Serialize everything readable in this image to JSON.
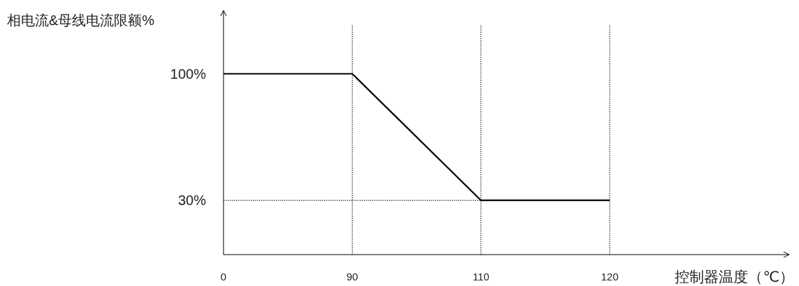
{
  "chart_data": {
    "type": "line",
    "categories": [
      "0",
      "90",
      "110",
      "120"
    ],
    "series": [
      {
        "color": "#000000",
        "values": [
          100,
          100,
          30,
          30
        ]
      }
    ],
    "ylim": [
      0,
      135
    ],
    "yticks": [
      {
        "value": 100,
        "label": "100%"
      },
      {
        "value": 30,
        "label": "30%"
      }
    ],
    "xlabel": "控制器温度（℃）",
    "ylabel": "相电流&母线电流限额%",
    "line_style": "solid",
    "ref_lines": [
      {
        "axis": "x",
        "value": "90",
        "color": "#000000",
        "line_style": "dotted"
      },
      {
        "axis": "x",
        "value": "110",
        "color": "#000000",
        "line_style": "dotted"
      },
      {
        "axis": "x",
        "value": "120",
        "color": "#000000",
        "line_style": "dotted"
      },
      {
        "axis": "y",
        "value": 30,
        "color": "#000000",
        "line_style": "dotted"
      }
    ]
  }
}
